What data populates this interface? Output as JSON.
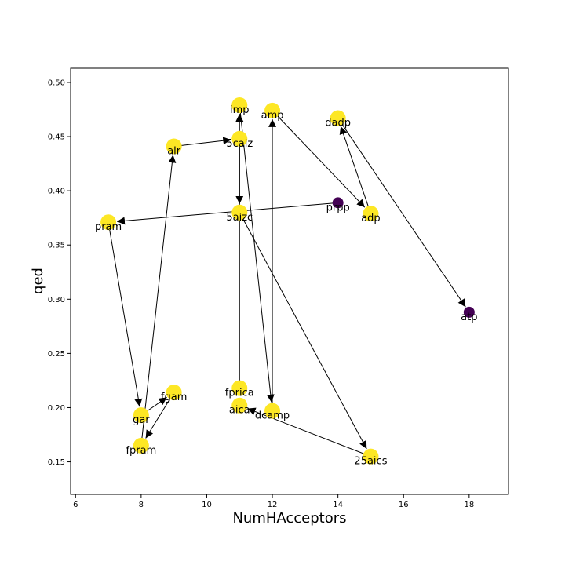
{
  "chart_data": {
    "type": "scatter",
    "xlabel": "NumHAcceptors",
    "ylabel": "qed",
    "xlim": [
      5.85,
      19.2
    ],
    "ylim": [
      0.12,
      0.513
    ],
    "x_ticks": [
      6,
      8,
      10,
      12,
      14,
      16,
      18
    ],
    "y_ticks": [
      0.15,
      0.2,
      0.25,
      0.3,
      0.35,
      0.4,
      0.45,
      0.5
    ],
    "grid": false,
    "colors": {
      "yellow": "#fde725",
      "purple": "#440154"
    },
    "nodes": [
      {
        "id": "imp",
        "x": 11,
        "y": 0.479,
        "color": "yellow"
      },
      {
        "id": "amp",
        "x": 12,
        "y": 0.474,
        "color": "yellow"
      },
      {
        "id": "dadp",
        "x": 14,
        "y": 0.467,
        "color": "yellow"
      },
      {
        "id": "5caiz",
        "x": 11,
        "y": 0.448,
        "color": "yellow"
      },
      {
        "id": "air",
        "x": 9,
        "y": 0.441,
        "color": "yellow"
      },
      {
        "id": "prpp",
        "x": 14,
        "y": 0.389,
        "color": "purple"
      },
      {
        "id": "adp",
        "x": 15,
        "y": 0.379,
        "color": "yellow"
      },
      {
        "id": "5aizc",
        "x": 11,
        "y": 0.38,
        "color": "yellow"
      },
      {
        "id": "pram",
        "x": 7,
        "y": 0.371,
        "color": "yellow"
      },
      {
        "id": "atp",
        "x": 18,
        "y": 0.288,
        "color": "purple"
      },
      {
        "id": "fprica",
        "x": 11,
        "y": 0.218,
        "color": "yellow"
      },
      {
        "id": "fgam",
        "x": 9,
        "y": 0.214,
        "color": "yellow"
      },
      {
        "id": "aica",
        "x": 11,
        "y": 0.202,
        "color": "yellow"
      },
      {
        "id": "dcamp",
        "x": 12,
        "y": 0.197,
        "color": "yellow"
      },
      {
        "id": "gar",
        "x": 8,
        "y": 0.193,
        "color": "yellow"
      },
      {
        "id": "fpram",
        "x": 8,
        "y": 0.165,
        "color": "yellow"
      },
      {
        "id": "25aics",
        "x": 15,
        "y": 0.155,
        "color": "yellow"
      }
    ],
    "edges": [
      {
        "from": "prpp",
        "to": "pram"
      },
      {
        "from": "pram",
        "to": "gar"
      },
      {
        "from": "gar",
        "to": "fgam"
      },
      {
        "from": "fgam",
        "to": "fpram"
      },
      {
        "from": "fpram",
        "to": "air"
      },
      {
        "from": "air",
        "to": "5caiz"
      },
      {
        "from": "5caiz",
        "to": "5aizc"
      },
      {
        "from": "5aizc",
        "to": "25aics"
      },
      {
        "from": "25aics",
        "to": "aica"
      },
      {
        "from": "fprica",
        "to": "imp"
      },
      {
        "from": "imp",
        "to": "dcamp"
      },
      {
        "from": "dcamp",
        "to": "amp"
      },
      {
        "from": "amp",
        "to": "adp"
      },
      {
        "from": "adp",
        "to": "dadp"
      },
      {
        "from": "dadp",
        "to": "atp"
      }
    ]
  }
}
